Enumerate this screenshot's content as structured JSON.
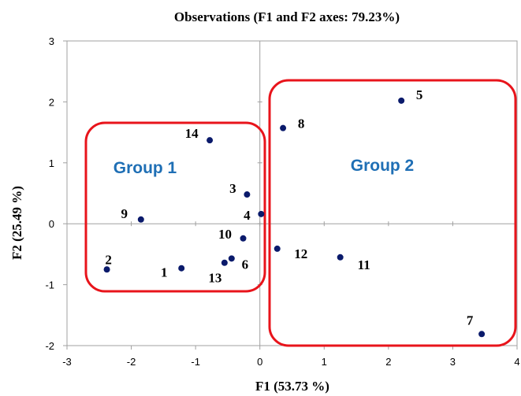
{
  "chart_data": {
    "type": "scatter",
    "title": "Observations (F1 and F2 axes: 79.23%)",
    "xlabel": "F1 (53.73 %)",
    "ylabel": "F2 (25.49 %)",
    "xlim": [
      -3,
      4
    ],
    "ylim": [
      -2,
      3
    ],
    "xticks": [
      "-3",
      "-2",
      "-1",
      "0",
      "1",
      "2",
      "3",
      "4"
    ],
    "yticks": [
      "-2",
      "-1",
      "0",
      "1",
      "2",
      "3"
    ],
    "grid": false,
    "point_color": "#0a1a6b",
    "points": [
      {
        "label": "1",
        "x": -1.22,
        "y": -0.73
      },
      {
        "label": "2",
        "x": -2.38,
        "y": -0.75
      },
      {
        "label": "3",
        "x": -0.2,
        "y": 0.48
      },
      {
        "label": "4",
        "x": 0.02,
        "y": 0.16
      },
      {
        "label": "5",
        "x": 2.2,
        "y": 2.02
      },
      {
        "label": "6",
        "x": -0.44,
        "y": -0.57
      },
      {
        "label": "7",
        "x": 3.45,
        "y": -1.81
      },
      {
        "label": "8",
        "x": 0.36,
        "y": 1.57
      },
      {
        "label": "9",
        "x": -1.85,
        "y": 0.07
      },
      {
        "label": "10",
        "x": -0.26,
        "y": -0.24
      },
      {
        "label": "11",
        "x": 1.25,
        "y": -0.55
      },
      {
        "label": "12",
        "x": 0.27,
        "y": -0.41
      },
      {
        "label": "13",
        "x": -0.55,
        "y": -0.64
      },
      {
        "label": "14",
        "x": -0.78,
        "y": 1.37
      }
    ],
    "groups": [
      {
        "label": "Group 1",
        "color": "#e8141b",
        "text_color": "#1f6fb5"
      },
      {
        "label": "Group 2",
        "color": "#e8141b",
        "text_color": "#1f6fb5"
      }
    ]
  }
}
